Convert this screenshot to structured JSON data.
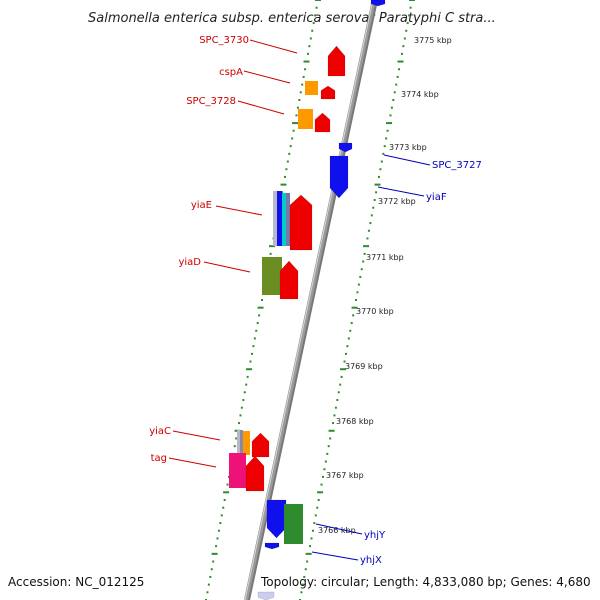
{
  "title": "Salmonella enterica subsp. enterica serovar Paratyphi C stra...",
  "accession": "Accession: NC_012125",
  "topology": "Topology: circular; Length: 4,833,080 bp; Genes: 4,680",
  "colors": {
    "backbone": "#9a9a9a",
    "ticks": "#2e8b2e",
    "label_left": "#cc0000",
    "label_right": "#0000bb",
    "red": "#ee0000",
    "blue": "#1010ee",
    "orange": "#ff9900",
    "green": "#2e8b2e",
    "olive": "#6b8e23",
    "magenta": "#ee1177",
    "cyan": "#00cccc",
    "grey": "#b8b8c8"
  },
  "kbp_ticks": [
    "3775 kbp",
    "3774 kbp",
    "3773 kbp",
    "3772 kbp",
    "3771 kbp",
    "3770 kbp",
    "3769 kbp",
    "3768 kbp",
    "3767 kbp",
    "3766 kbp"
  ],
  "gene_labels_left": [
    "SPC_3730",
    "cspA",
    "SPC_3728",
    "yiaE",
    "yiaD",
    "yiaC",
    "tag"
  ],
  "gene_labels_right": [
    "SPC_3727",
    "yiaF",
    "yhjY",
    "yhjX"
  ]
}
